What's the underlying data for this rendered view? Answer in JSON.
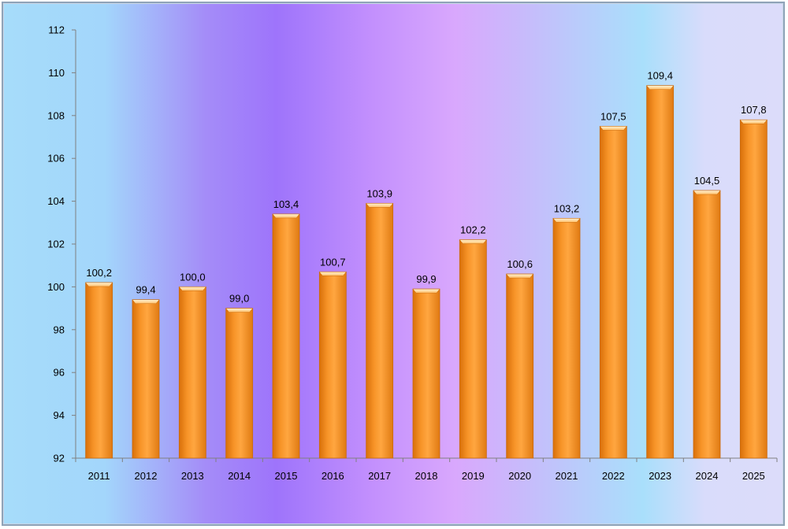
{
  "chart_data": {
    "type": "bar",
    "title": "",
    "xlabel": "",
    "ylabel": "",
    "categories": [
      "2011",
      "2012",
      "2013",
      "2014",
      "2015",
      "2016",
      "2017",
      "2018",
      "2019",
      "2020",
      "2021",
      "2022",
      "2023",
      "2024",
      "2025"
    ],
    "values": [
      100.2,
      99.4,
      100.0,
      99.0,
      103.4,
      100.7,
      103.9,
      99.9,
      102.2,
      100.6,
      103.2,
      107.5,
      109.4,
      104.5,
      107.8
    ],
    "value_labels": [
      "100,2",
      "99,4",
      "100,0",
      "99,0",
      "103,4",
      "100,7",
      "103,9",
      "99,9",
      "102,2",
      "100,6",
      "103,2",
      "107,5",
      "109,4",
      "104,5",
      "107,8"
    ],
    "ylim": [
      92,
      112
    ],
    "y_ticks": [
      "92",
      "94",
      "96",
      "98",
      "100",
      "102",
      "104",
      "106",
      "108",
      "110",
      "112"
    ],
    "grid": false,
    "legend": "none",
    "colors": {
      "bar": "#f5901e",
      "bar_dark": "#d9700a",
      "bar_light": "#ffb45a",
      "axis": "#808080"
    }
  }
}
